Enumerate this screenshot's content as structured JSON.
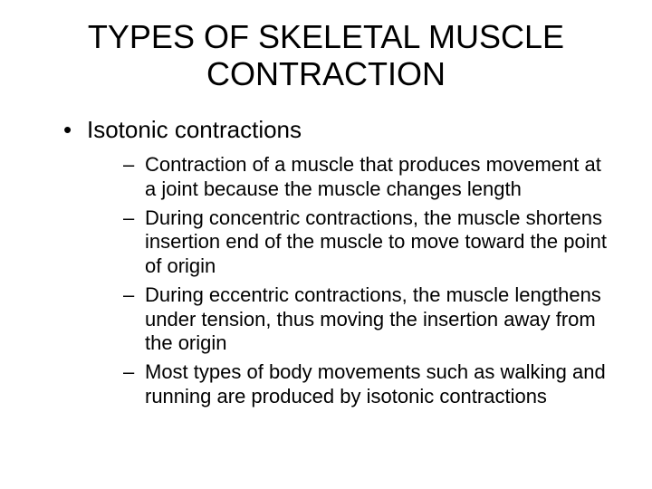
{
  "title": "TYPES OF SKELETAL MUSCLE CONTRACTION",
  "bullet": {
    "label": "Isotonic contractions",
    "subitems": [
      "Contraction of a muscle that produces movement at a joint because the muscle changes length",
      "During concentric contractions, the muscle shortens insertion end of the muscle to move toward the point of origin",
      "During eccentric contractions, the muscle lengthens under tension, thus moving the insertion away from the origin",
      "Most types of body movements such as walking and running are produced by isotonic contractions"
    ]
  },
  "colors": {
    "background": "#ffffff",
    "text": "#000000"
  },
  "typography": {
    "title_fontsize": 36,
    "bullet_fontsize": 26,
    "sub_fontsize": 22,
    "font_family": "Arial"
  }
}
